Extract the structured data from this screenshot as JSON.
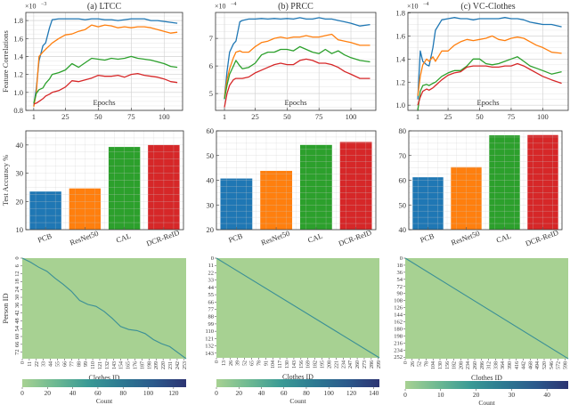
{
  "chart_data": [
    {
      "type": "line",
      "title": "(a) LTCC",
      "xlabel": "Epochs",
      "ylabel": "Feature Correlations",
      "multiplier": {
        "base": "×10",
        "exp": "−3"
      },
      "xlim": [
        -5,
        114
      ],
      "ylim": [
        0.8,
        1.89
      ],
      "xticks": [
        1,
        25,
        50,
        75,
        100
      ],
      "yticks": [
        0.8,
        1.0,
        1.2,
        1.4,
        1.6,
        1.8
      ],
      "grid": true,
      "x": [
        1,
        3,
        5,
        8,
        10,
        13,
        15,
        20,
        25,
        30,
        35,
        40,
        45,
        50,
        55,
        60,
        65,
        70,
        75,
        80,
        85,
        90,
        95,
        100,
        105,
        110
      ],
      "series": [
        {
          "color": "#1f77b4",
          "values": [
            0.85,
            1.05,
            1.35,
            1.52,
            1.55,
            1.72,
            1.81,
            1.82,
            1.82,
            1.82,
            1.82,
            1.81,
            1.82,
            1.82,
            1.81,
            1.81,
            1.8,
            1.81,
            1.82,
            1.82,
            1.82,
            1.8,
            1.8,
            1.79,
            1.78,
            1.77
          ]
        },
        {
          "color": "#ff7f0e",
          "values": [
            0.84,
            1.0,
            1.4,
            1.45,
            1.48,
            1.52,
            1.55,
            1.6,
            1.64,
            1.65,
            1.68,
            1.7,
            1.75,
            1.73,
            1.75,
            1.74,
            1.72,
            1.73,
            1.72,
            1.73,
            1.73,
            1.72,
            1.7,
            1.68,
            1.66,
            1.67
          ]
        },
        {
          "color": "#2ca02c",
          "values": [
            0.88,
            0.99,
            1.03,
            1.05,
            1.1,
            1.15,
            1.2,
            1.22,
            1.25,
            1.32,
            1.28,
            1.33,
            1.38,
            1.37,
            1.36,
            1.38,
            1.37,
            1.38,
            1.4,
            1.38,
            1.37,
            1.36,
            1.34,
            1.32,
            1.29,
            1.28
          ]
        },
        {
          "color": "#d62728",
          "values": [
            0.87,
            0.88,
            0.9,
            0.93,
            0.96,
            0.98,
            1.0,
            1.02,
            1.06,
            1.13,
            1.12,
            1.14,
            1.16,
            1.19,
            1.18,
            1.18,
            1.19,
            1.17,
            1.2,
            1.21,
            1.19,
            1.18,
            1.17,
            1.15,
            1.12,
            1.11
          ]
        }
      ]
    },
    {
      "type": "line",
      "title": "(b) PRCC",
      "xlabel": "Epochs",
      "multiplier": {
        "base": "×10",
        "exp": "−4"
      },
      "xlim": [
        -6,
        119.5
      ],
      "ylim": [
        4.39,
        7.94
      ],
      "xticks": [
        1,
        25,
        50,
        75,
        100
      ],
      "yticks": [
        5,
        6,
        7
      ],
      "grid": true,
      "x": [
        1,
        3,
        5,
        8,
        10,
        13,
        15,
        20,
        25,
        30,
        35,
        40,
        45,
        50,
        55,
        60,
        65,
        70,
        75,
        80,
        85,
        90,
        95,
        100,
        107,
        115
      ],
      "series": [
        {
          "color": "#1f77b4",
          "values": [
            4.8,
            5.8,
            6.5,
            6.8,
            6.9,
            7.6,
            7.65,
            7.7,
            7.7,
            7.72,
            7.7,
            7.72,
            7.7,
            7.72,
            7.7,
            7.75,
            7.7,
            7.7,
            7.75,
            7.7,
            7.7,
            7.65,
            7.6,
            7.55,
            7.45,
            7.5
          ]
        },
        {
          "color": "#ff7f0e",
          "values": [
            4.85,
            5.5,
            5.9,
            6.3,
            6.5,
            6.55,
            6.5,
            6.5,
            6.7,
            6.85,
            6.9,
            7.0,
            7.05,
            7.0,
            7.05,
            7.05,
            7.1,
            7.05,
            7.05,
            7.1,
            7.15,
            6.95,
            6.9,
            6.85,
            6.75,
            6.75
          ]
        },
        {
          "color": "#2ca02c",
          "values": [
            4.8,
            5.3,
            5.7,
            6.0,
            6.2,
            6.0,
            5.9,
            5.95,
            6.1,
            6.4,
            6.5,
            6.5,
            6.6,
            6.6,
            6.55,
            6.7,
            6.6,
            6.5,
            6.45,
            6.6,
            6.45,
            6.55,
            6.4,
            6.3,
            6.2,
            6.15
          ]
        },
        {
          "color": "#d62728",
          "values": [
            4.5,
            5.0,
            5.3,
            5.5,
            5.55,
            5.55,
            5.55,
            5.6,
            5.75,
            5.85,
            5.95,
            6.05,
            6.1,
            6.05,
            6.05,
            6.2,
            6.25,
            6.2,
            6.1,
            6.1,
            6.05,
            5.95,
            5.8,
            5.7,
            5.55,
            5.55
          ]
        }
      ]
    },
    {
      "type": "line",
      "title": "(c) VC-Clothes",
      "xlabel": "Epochs",
      "multiplier": {
        "base": "×10",
        "exp": "−4"
      },
      "xlim": [
        -6.8,
        120.2
      ],
      "ylim": [
        0.955,
        1.804
      ],
      "xticks": [
        1,
        25,
        50,
        75,
        100
      ],
      "yticks": [
        1.0,
        1.2,
        1.4,
        1.6,
        1.8
      ],
      "grid": true,
      "x": [
        1,
        3,
        5,
        8,
        10,
        13,
        15,
        20,
        25,
        30,
        35,
        40,
        45,
        50,
        55,
        60,
        65,
        70,
        75,
        80,
        85,
        90,
        95,
        100,
        107,
        115
      ],
      "series": [
        {
          "color": "#1f77b4",
          "values": [
            1.05,
            1.47,
            1.38,
            1.35,
            1.34,
            1.5,
            1.65,
            1.74,
            1.75,
            1.76,
            1.75,
            1.75,
            1.74,
            1.75,
            1.75,
            1.75,
            1.75,
            1.76,
            1.75,
            1.75,
            1.74,
            1.72,
            1.71,
            1.7,
            1.7,
            1.68
          ]
        },
        {
          "color": "#ff7f0e",
          "values": [
            1.08,
            1.25,
            1.35,
            1.4,
            1.38,
            1.42,
            1.38,
            1.47,
            1.47,
            1.52,
            1.55,
            1.57,
            1.56,
            1.57,
            1.58,
            1.6,
            1.57,
            1.56,
            1.58,
            1.59,
            1.58,
            1.55,
            1.52,
            1.5,
            1.46,
            1.45
          ]
        },
        {
          "color": "#2ca02c",
          "values": [
            0.95,
            1.12,
            1.17,
            1.18,
            1.17,
            1.19,
            1.2,
            1.25,
            1.28,
            1.3,
            1.3,
            1.34,
            1.4,
            1.4,
            1.36,
            1.35,
            1.36,
            1.38,
            1.4,
            1.42,
            1.38,
            1.34,
            1.32,
            1.3,
            1.27,
            1.29
          ]
        },
        {
          "color": "#d62728",
          "values": [
            1.0,
            1.07,
            1.12,
            1.14,
            1.13,
            1.15,
            1.17,
            1.22,
            1.26,
            1.28,
            1.29,
            1.33,
            1.34,
            1.34,
            1.34,
            1.33,
            1.33,
            1.34,
            1.34,
            1.36,
            1.34,
            1.31,
            1.28,
            1.25,
            1.22,
            1.19
          ]
        }
      ]
    },
    {
      "type": "bar",
      "ylabel": "Test Accuracy %",
      "categories": [
        "PCB",
        "ResNet50",
        "CAL",
        "DCR-ReID"
      ],
      "values": [
        23.5,
        24.6,
        39.3,
        40.0
      ],
      "colors": [
        "#1f77b4",
        "#ff7f0e",
        "#2ca02c",
        "#d62728"
      ],
      "ylim": [
        10,
        45
      ],
      "yticks": [
        10,
        20,
        30,
        40
      ],
      "grid": true
    },
    {
      "type": "bar",
      "categories": [
        "PCB",
        "ResNet50",
        "CAL",
        "DCR-ReID"
      ],
      "values": [
        40.7,
        43.8,
        54.3,
        55.5
      ],
      "colors": [
        "#1f77b4",
        "#ff7f0e",
        "#2ca02c",
        "#d62728"
      ],
      "ylim": [
        20,
        60
      ],
      "yticks": [
        20,
        30,
        40,
        50,
        60
      ],
      "grid": true
    },
    {
      "type": "bar",
      "categories": [
        "PCB",
        "ResNet50",
        "CAL",
        "DCR-ReID"
      ],
      "values": [
        61.2,
        65.3,
        78.2,
        78.3
      ],
      "colors": [
        "#1f77b4",
        "#ff7f0e",
        "#2ca02c",
        "#d62728"
      ],
      "ylim": [
        40,
        80
      ],
      "yticks": [
        40,
        50,
        60,
        70,
        80
      ],
      "grid": true
    },
    {
      "type": "heatmap",
      "xlabel": "Clothes ID",
      "ylabel": "Person ID",
      "xlim": [
        0,
        256
      ],
      "ylim": [
        0,
        77
      ],
      "xticks": [
        0,
        11,
        22,
        33,
        44,
        55,
        66,
        77,
        88,
        99,
        110,
        121,
        132,
        143,
        154,
        165,
        176,
        187,
        198,
        209,
        220,
        231,
        242,
        253
      ],
      "yticks": [
        0,
        6,
        12,
        18,
        24,
        30,
        36,
        42,
        48,
        54,
        60,
        66,
        72
      ],
      "colorbar": {
        "label": "Count",
        "range": [
          0,
          130
        ],
        "ticks": [
          0,
          20,
          40,
          60,
          80,
          100,
          120
        ]
      },
      "colormap": [
        "#a7d192",
        "#6db992",
        "#3a9a95",
        "#2d7a92",
        "#2b5a8c",
        "#2c3472"
      ]
    },
    {
      "type": "heatmap",
      "xlabel": "Clothes ID",
      "xlim": [
        0,
        301
      ],
      "ylim": [
        0,
        150
      ],
      "xticks": [
        0,
        13,
        26,
        39,
        52,
        65,
        78,
        91,
        104,
        117,
        130,
        143,
        156,
        169,
        182,
        195,
        208,
        221,
        234,
        247,
        260,
        273,
        286,
        299
      ],
      "yticks": [
        0,
        11,
        22,
        33,
        44,
        55,
        66,
        77,
        88,
        99,
        110,
        121,
        132,
        143
      ],
      "colorbar": {
        "label": "Count",
        "range": [
          0,
          145
        ],
        "ticks": [
          0,
          20,
          40,
          60,
          80,
          100,
          120,
          140
        ]
      },
      "colormap": [
        "#a7d192",
        "#6db992",
        "#3a9a95",
        "#2d7a92",
        "#2b5a8c",
        "#2c3472"
      ]
    },
    {
      "type": "heatmap",
      "xlabel": "Clothes ID",
      "xlim": [
        0,
        610
      ],
      "ylim": [
        0,
        256
      ],
      "xticks": [
        0,
        26,
        52,
        78,
        104,
        130,
        156,
        182,
        208,
        234,
        260,
        286,
        312,
        338,
        364,
        390,
        416,
        442,
        468,
        494,
        520,
        546,
        572,
        598
      ],
      "yticks": [
        0,
        18,
        36,
        54,
        72,
        90,
        108,
        126,
        144,
        162,
        180,
        198,
        216,
        234,
        252
      ],
      "colorbar": {
        "label": "Count",
        "range": [
          0,
          46
        ],
        "ticks": [
          0,
          10,
          20,
          30,
          40
        ]
      },
      "colormap": [
        "#a7d192",
        "#6db992",
        "#3a9a95",
        "#2d7a92",
        "#2b5a8c",
        "#2c3472"
      ]
    }
  ]
}
